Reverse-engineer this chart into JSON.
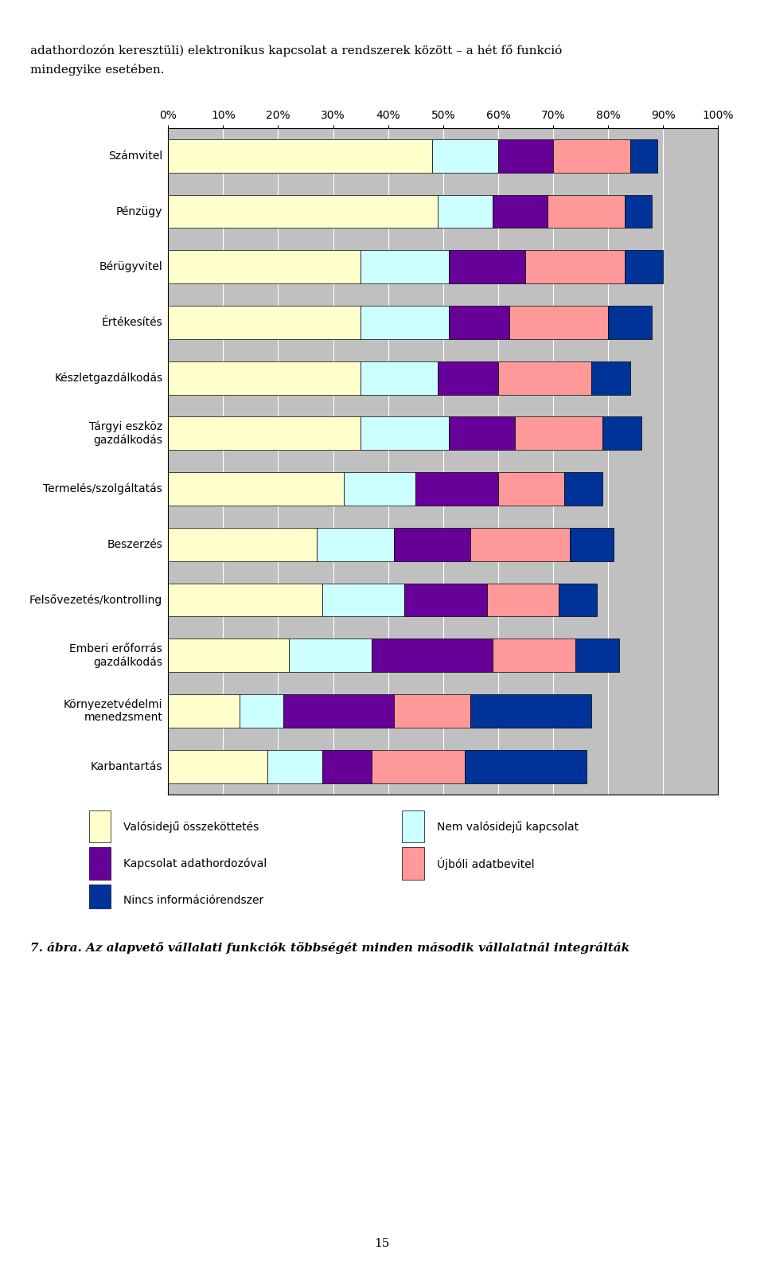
{
  "categories": [
    "Számvitel",
    "Pénzügy",
    "Bérügyvitel",
    "Értékesítés",
    "Készletgazdálkodás",
    "Tárgyi eszköz\ngazdálkodás",
    "Termelés/szolgáltatás",
    "Beszerzés",
    "Felsővezetés/kontrolling",
    "Emberi erőforrás\ngazdálkodás",
    "Környezetvédelmi\nmenedzsment",
    "Karbantartás"
  ],
  "series": {
    "Valósidejű összeköttetés": [
      48,
      49,
      35,
      35,
      35,
      35,
      32,
      27,
      28,
      22,
      13,
      18
    ],
    "Nem valósidejű kapcsolat": [
      12,
      10,
      16,
      16,
      14,
      16,
      13,
      14,
      15,
      15,
      8,
      10
    ],
    "Kapcsolat adathordozóval": [
      10,
      10,
      14,
      11,
      11,
      12,
      15,
      14,
      15,
      22,
      20,
      9
    ],
    "Újbóli adatbevitel": [
      14,
      14,
      18,
      18,
      17,
      16,
      12,
      18,
      13,
      15,
      14,
      17
    ],
    "Nincs információrendszer": [
      5,
      5,
      7,
      8,
      7,
      7,
      7,
      8,
      7,
      8,
      22,
      22
    ]
  },
  "colors": {
    "Valósidejű összeköttetés": "#FFFFCC",
    "Nem valósidejű kapcsolat": "#CCFFFF",
    "Kapcsolat adathordozóval": "#660099",
    "Újbóli adatbevitel": "#FF9999",
    "Nincs információrendszer": "#003399"
  },
  "background_color": "#C0C0C0",
  "xlim": [
    0,
    100
  ],
  "xlabel_ticks": [
    0,
    10,
    20,
    30,
    40,
    50,
    60,
    70,
    80,
    90,
    100
  ],
  "figure_bgcolor": "#FFFFFF",
  "top_text_line1": "adathordozón keresztüli) elektronikus kapcsolat a rendszerek között – a hét fő funkció",
  "top_text_line2": "mindegyike esetében.",
  "legend_entries_col1": [
    "Valósidejű összeköttetés",
    "Kapcsolat adathordozóval",
    "Nincs információrendszer"
  ],
  "legend_entries_col2": [
    "Nem valósidejű kapcsolat",
    "Újbóli adatbevitel"
  ],
  "caption": "7. ábra. Az alapvető vállalati funkciók többségét minden második vállalatnál integrálták",
  "page_number": "15"
}
